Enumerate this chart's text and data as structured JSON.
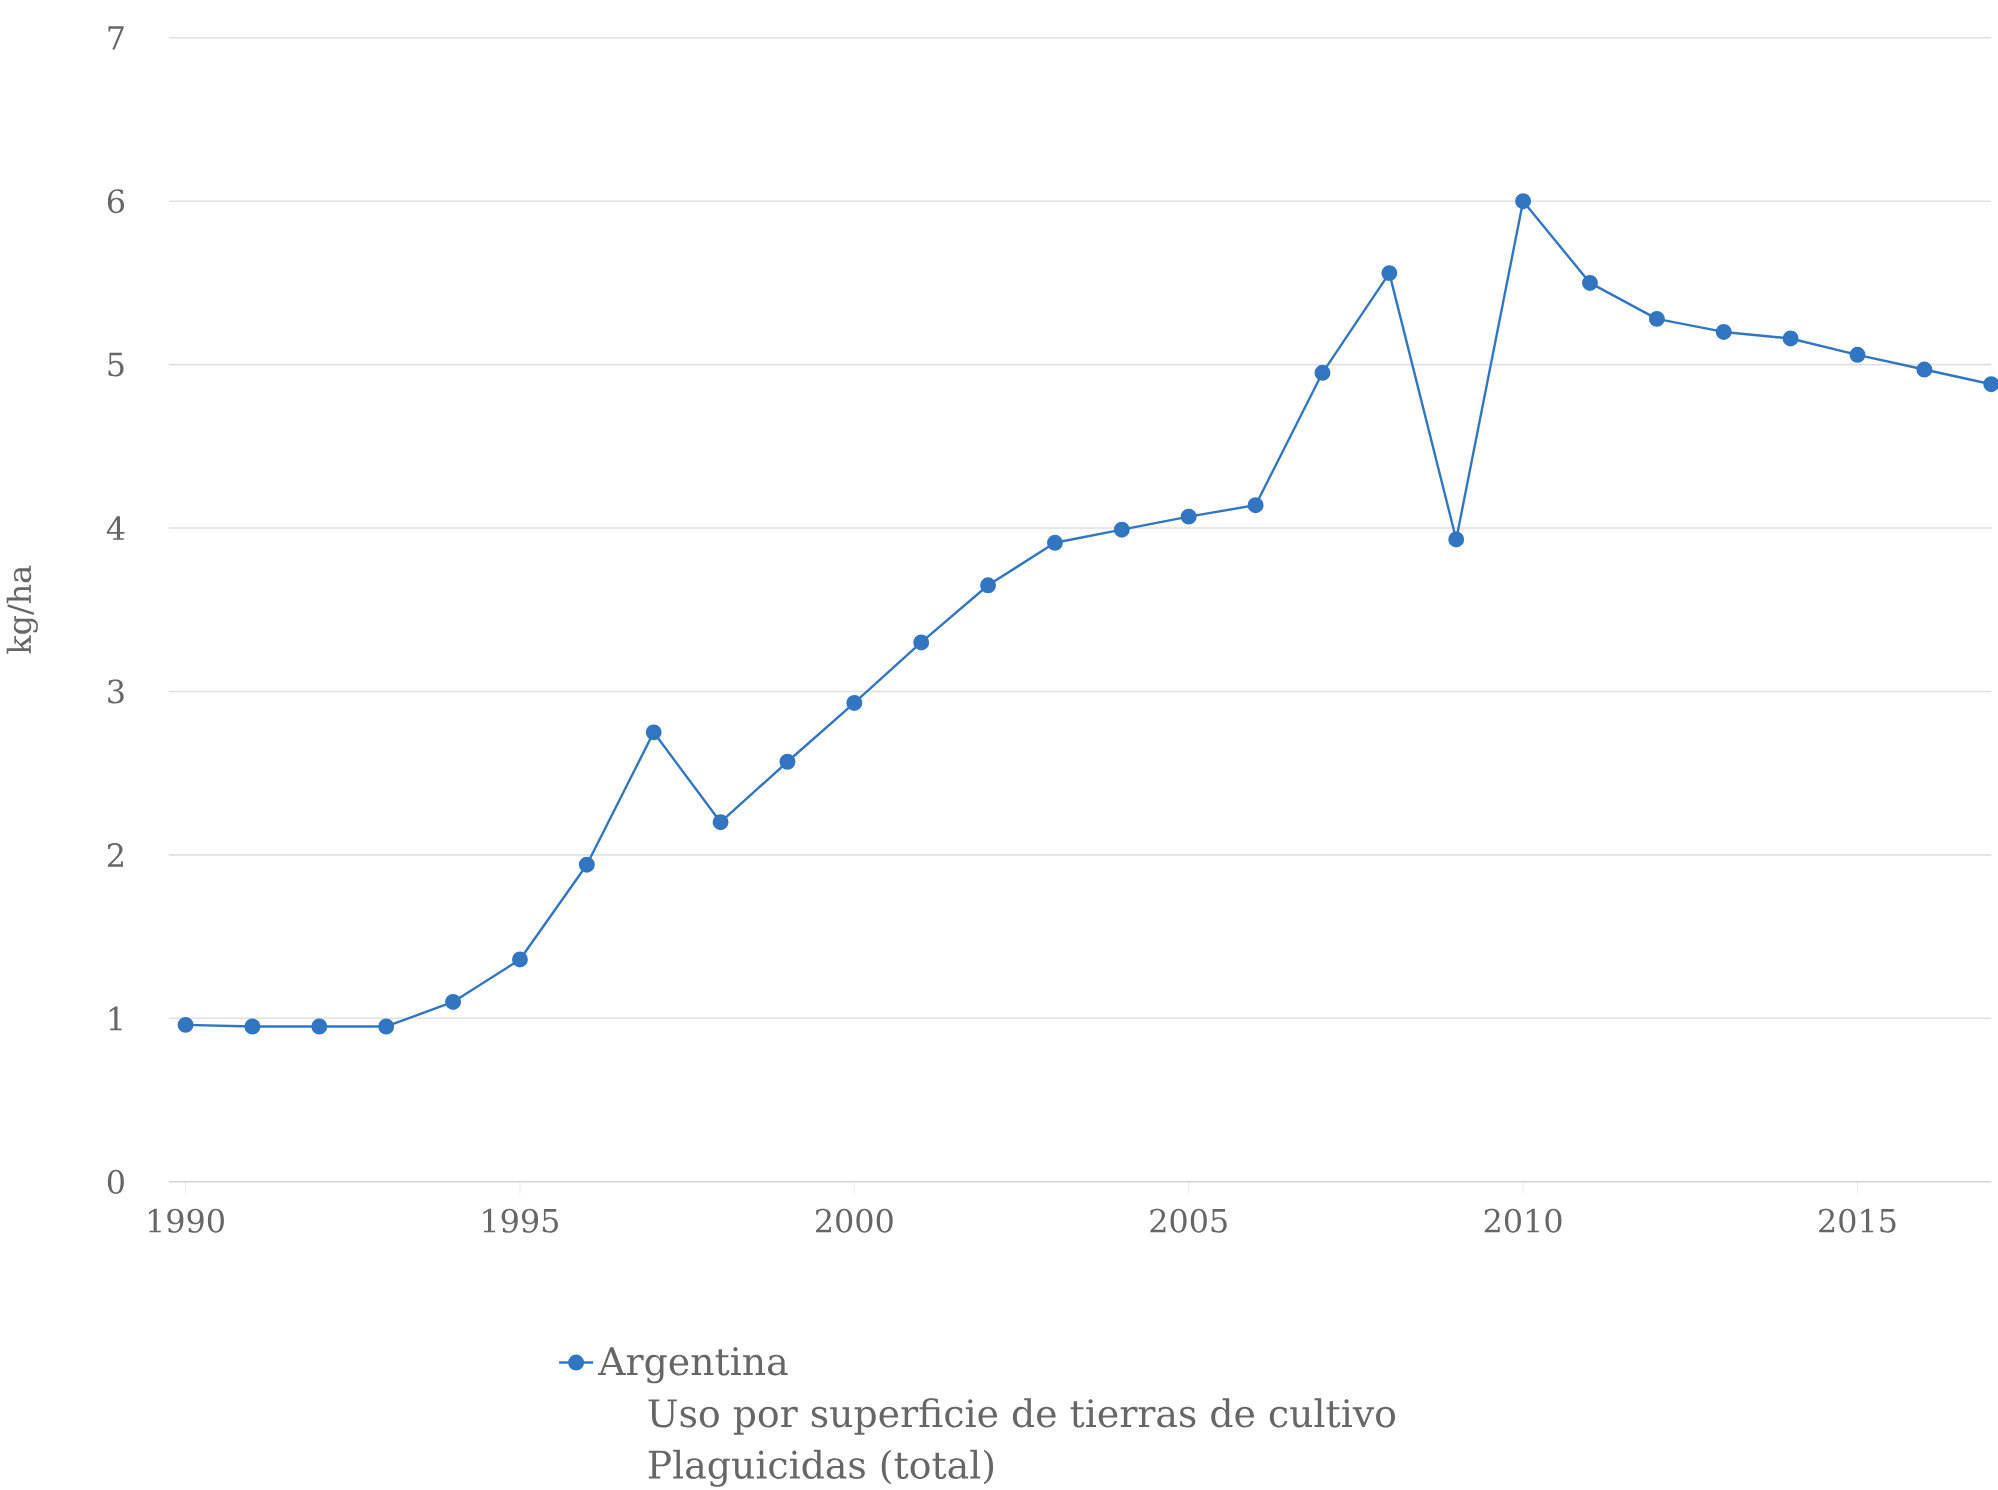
{
  "chart_data": {
    "type": "line",
    "ylabel": "kg/ha",
    "x": [
      1990,
      1991,
      1992,
      1993,
      1994,
      1995,
      1996,
      1997,
      1998,
      1999,
      2000,
      2001,
      2002,
      2003,
      2004,
      2005,
      2006,
      2007,
      2008,
      2009,
      2010,
      2011,
      2012,
      2013,
      2014,
      2015,
      2016,
      2017
    ],
    "series": [
      {
        "name": "Argentina",
        "color": "#3275c0",
        "values": [
          0.96,
          0.95,
          0.95,
          0.95,
          1.1,
          1.36,
          1.94,
          2.75,
          2.2,
          2.57,
          2.93,
          3.3,
          3.65,
          3.91,
          3.99,
          4.07,
          4.14,
          4.95,
          5.56,
          3.93,
          6.0,
          5.5,
          5.28,
          5.2,
          5.16,
          5.06,
          4.97,
          4.88
        ]
      }
    ],
    "xlim": [
      1989.75,
      2017
    ],
    "ylim": [
      0,
      7
    ],
    "xticks": [
      1990,
      1995,
      2000,
      2005,
      2010,
      2015
    ],
    "yticks": [
      0,
      1,
      2,
      3,
      4,
      5,
      6,
      7
    ],
    "grid": "y",
    "legend": "bottom",
    "marker": "circle",
    "annotations": [
      "Uso por superficie de tierras de cultivo",
      "Plaguicidas (total)"
    ]
  }
}
